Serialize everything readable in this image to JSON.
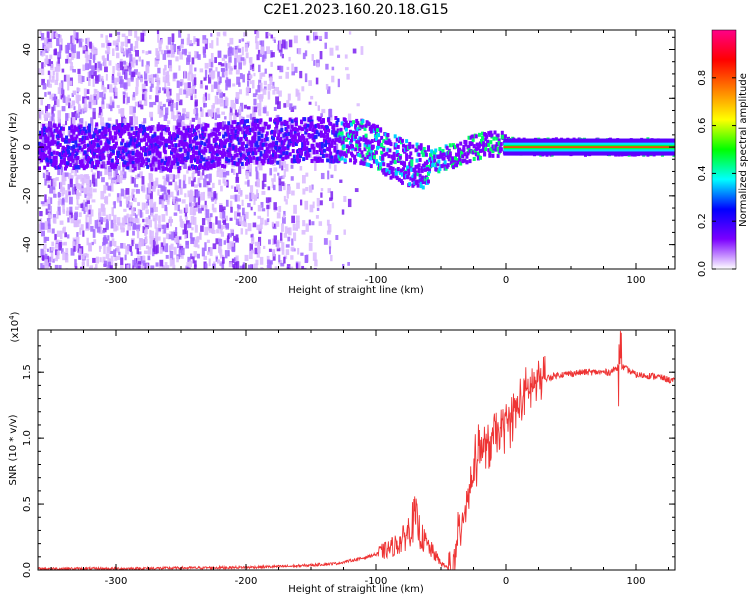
{
  "figure_title": "C2E1.2023.160.20.18.G15",
  "chart_data": [
    {
      "type": "heatmap",
      "title": "",
      "xlabel": "Height of straight line (km)",
      "ylabel": "Frequency (Hz)",
      "xlim": [
        -360,
        130
      ],
      "ylim": [
        -50,
        48
      ],
      "x_ticks": [
        -300,
        -200,
        -100,
        0,
        100
      ],
      "x_tick_labels": [
        "-300",
        "-200",
        "-100",
        "0",
        "100"
      ],
      "y_ticks": [
        -40,
        -20,
        0,
        20,
        40
      ],
      "y_tick_labels": [
        "-40",
        "-20",
        "0",
        "20",
        "40"
      ],
      "trend_line": {
        "x": [
          -360,
          -300,
          -250,
          -200,
          -160,
          -130,
          -110,
          -95,
          -85,
          -75,
          -65,
          -55,
          -45,
          -35,
          -25,
          -15,
          -5,
          5,
          20,
          60,
          100,
          130
        ],
        "y": [
          0,
          0.5,
          -1,
          2,
          3,
          3,
          2,
          -2,
          -5,
          -7,
          -8,
          -6,
          -4,
          -2,
          0,
          1,
          1,
          0.5,
          0,
          0,
          0,
          0
        ]
      },
      "colorbar": {
        "label": "Normalized spectral amplitude",
        "range": [
          0,
          1
        ],
        "ticks": [
          0.0,
          0.2,
          0.4,
          0.6,
          0.8
        ],
        "tick_labels": [
          "0.0",
          "0.2",
          "0.4",
          "0.6",
          "0.8"
        ],
        "colors": [
          "#ffffff",
          "#7b00ff",
          "#0000ff",
          "#00ffff",
          "#00ff00",
          "#ffff00",
          "#ff8000",
          "#ff0000",
          "#ff0088"
        ]
      }
    },
    {
      "type": "line",
      "title": "",
      "xlabel": "Height of straight line (km)",
      "ylabel": "SNR (10 * v/v)",
      "exponent_label": "(x10",
      "exponent_power": "4",
      "exponent_close": ")",
      "xlim": [
        -360,
        130
      ],
      "ylim": [
        0,
        1.82
      ],
      "x_ticks": [
        -300,
        -200,
        -100,
        0,
        100
      ],
      "x_tick_labels": [
        "-300",
        "-200",
        "-100",
        "0",
        "100"
      ],
      "y_ticks": [
        0.0,
        0.5,
        1.0,
        1.5
      ],
      "y_tick_labels": [
        "0.0",
        "0.5",
        "1.0",
        "1.5"
      ],
      "line_color": "#ee3333",
      "series": [
        {
          "name": "SNR",
          "x": [
            -360,
            -300,
            -250,
            -200,
            -160,
            -130,
            -110,
            -100,
            -90,
            -80,
            -75,
            -70,
            -65,
            -60,
            -55,
            -50,
            -45,
            -40,
            -35,
            -30,
            -25,
            -20,
            -15,
            -10,
            -5,
            0,
            10,
            20,
            30,
            40,
            60,
            80,
            88,
            100,
            115,
            130
          ],
          "y": [
            0.01,
            0.01,
            0.015,
            0.02,
            0.03,
            0.05,
            0.09,
            0.12,
            0.16,
            0.22,
            0.3,
            0.4,
            0.25,
            0.18,
            0.12,
            0.05,
            0.02,
            0.02,
            0.35,
            0.55,
            0.75,
            0.95,
            0.9,
            1.0,
            1.05,
            1.1,
            1.25,
            1.4,
            1.45,
            1.48,
            1.5,
            1.5,
            1.55,
            1.48,
            1.47,
            1.43
          ]
        }
      ]
    }
  ]
}
